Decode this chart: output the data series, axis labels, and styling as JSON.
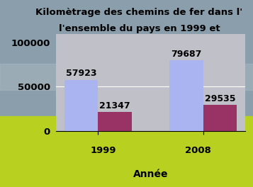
{
  "title_line1": "Kilomètrage des chemins de fer dans l'",
  "title_line2": "l'ensemble du pays en 1999 et",
  "xlabel": "Année",
  "years": [
    "1999",
    "2008"
  ],
  "ouest_values": [
    57923,
    79687
  ],
  "ensemble_values": [
    21347,
    29535
  ],
  "ouest_color": "#aab4f0",
  "ensemble_color": "#993366",
  "bar_width": 0.32,
  "ylim": [
    0,
    110000
  ],
  "yticks": [
    0,
    50000,
    100000
  ],
  "title_fontsize": 9.5,
  "label_fontsize": 10,
  "tick_fontsize": 9.5,
  "value_fontsize": 9,
  "plot_bg_color": "#c0c0c8",
  "fig_top_color": "#8a9aaa",
  "fig_bottom_color": "#c8d840",
  "ylabel_color": "black",
  "xlabel_color": "black",
  "xtick_color": "black"
}
